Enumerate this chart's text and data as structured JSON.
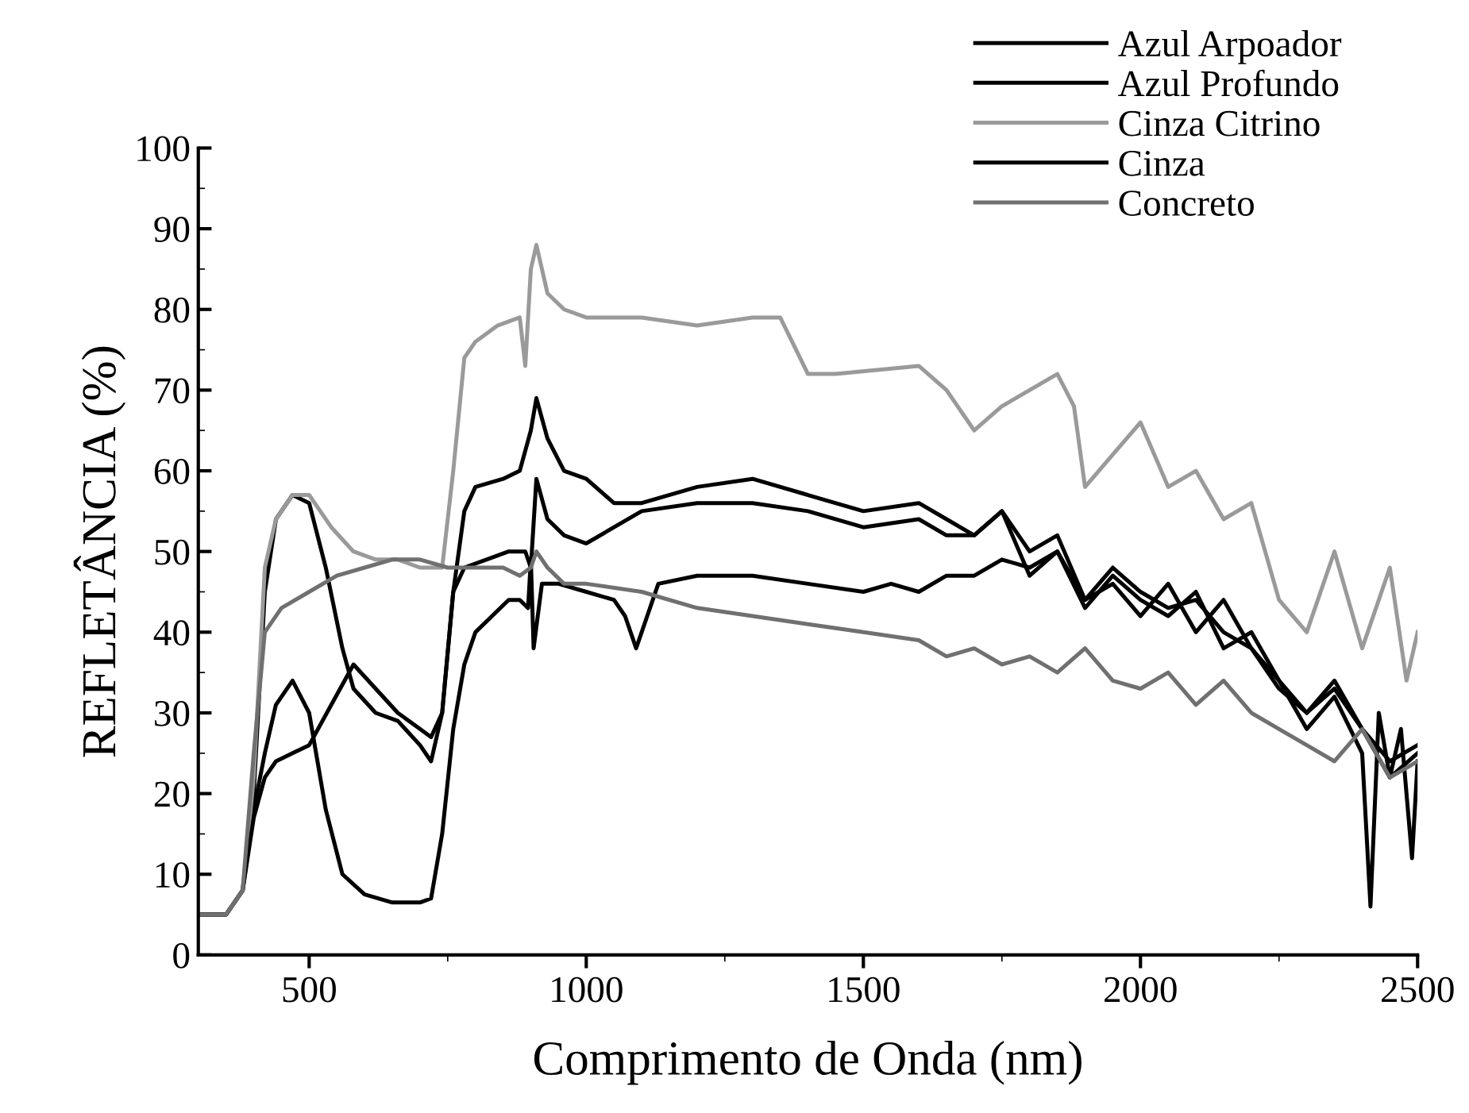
{
  "chart_data": {
    "type": "line",
    "xlabel": "Comprimento de Onda (nm)",
    "ylabel": "REFLETÂNCIA (%)",
    "xlim": [
      300,
      2500
    ],
    "xticks": [
      500,
      1000,
      1500,
      2000,
      2500
    ],
    "ylim": [
      0,
      100
    ],
    "yticks": [
      0,
      10,
      20,
      30,
      40,
      50,
      60,
      70,
      80,
      90,
      100
    ],
    "grid": false,
    "legend": "top right",
    "line_style": "solid",
    "marker": "none",
    "series": [
      {
        "name": "Azul Arpoador",
        "color": "#000000",
        "x": [
          300,
          350,
          380,
          400,
          420,
          440,
          470,
          500,
          530,
          560,
          580,
          620,
          660,
          700,
          720,
          740,
          760,
          780,
          820,
          860,
          890,
          900,
          910,
          930,
          960,
          1000,
          1100,
          1200,
          1300,
          1400,
          1500,
          1600,
          1650,
          1700,
          1750,
          1800,
          1850,
          1900,
          1950,
          2000,
          2050,
          2100,
          2150,
          2200,
          2250,
          2300,
          2350,
          2400,
          2450,
          2500
        ],
        "values": [
          5,
          5,
          8,
          20,
          45,
          54,
          57,
          56,
          48,
          38,
          33,
          30,
          29,
          26,
          24,
          30,
          45,
          48,
          49,
          50,
          50,
          48,
          59,
          54,
          52,
          51,
          55,
          56,
          56,
          55,
          53,
          54,
          52,
          52,
          55,
          50,
          52,
          44,
          48,
          45,
          43,
          44,
          40,
          38,
          33,
          30,
          34,
          28,
          24,
          26
        ]
      },
      {
        "name": "Azul Profundo",
        "color": "#000000",
        "x": [
          300,
          350,
          380,
          400,
          420,
          440,
          470,
          500,
          530,
          560,
          600,
          650,
          700,
          720,
          740,
          760,
          780,
          800,
          830,
          860,
          880,
          895,
          900,
          905,
          920,
          950,
          1000,
          1050,
          1070,
          1090,
          1110,
          1130,
          1200,
          1300,
          1400,
          1500,
          1550,
          1600,
          1650,
          1700,
          1750,
          1800,
          1850,
          1900,
          1950,
          2000,
          2050,
          2100,
          2150,
          2200,
          2250,
          2300,
          2350,
          2400,
          2415,
          2430,
          2450,
          2470,
          2490,
          2500
        ],
        "values": [
          5,
          5,
          8,
          18,
          25,
          31,
          34,
          30,
          18,
          10,
          7.5,
          6.5,
          6.5,
          7,
          15,
          28,
          36,
          40,
          42,
          44,
          44,
          43,
          49,
          38,
          46,
          46,
          45,
          44,
          42,
          38,
          42,
          46,
          47,
          47,
          46,
          45,
          46,
          45,
          47,
          47,
          49,
          48,
          50,
          44,
          46,
          42,
          46,
          40,
          44,
          38,
          34,
          28,
          32,
          25,
          6,
          30,
          22,
          28,
          12,
          24
        ]
      },
      {
        "name": "Cinza Citrino",
        "color": "#9a9a9a",
        "x": [
          300,
          350,
          380,
          400,
          420,
          440,
          470,
          500,
          540,
          580,
          620,
          660,
          700,
          740,
          760,
          780,
          800,
          840,
          880,
          890,
          900,
          910,
          930,
          960,
          1000,
          1100,
          1200,
          1300,
          1350,
          1400,
          1450,
          1600,
          1650,
          1700,
          1750,
          1800,
          1850,
          1880,
          1900,
          1950,
          2000,
          2050,
          2100,
          2150,
          2200,
          2250,
          2300,
          2350,
          2400,
          2450,
          2480,
          2500
        ],
        "values": [
          5,
          5,
          8,
          22,
          48,
          54,
          57,
          57,
          53,
          50,
          49,
          49,
          48,
          48,
          60,
          74,
          76,
          78,
          79,
          73,
          85,
          88,
          82,
          80,
          79,
          79,
          78,
          79,
          79,
          72,
          72,
          73,
          70,
          65,
          68,
          70,
          72,
          68,
          58,
          62,
          66,
          58,
          60,
          54,
          56,
          44,
          40,
          50,
          38,
          48,
          34,
          40
        ]
      },
      {
        "name": "Cinza",
        "color": "#000000",
        "x": [
          300,
          350,
          380,
          400,
          420,
          440,
          470,
          500,
          540,
          580,
          620,
          660,
          700,
          720,
          740,
          760,
          780,
          800,
          850,
          880,
          900,
          910,
          930,
          960,
          1000,
          1050,
          1100,
          1200,
          1300,
          1400,
          1500,
          1600,
          1650,
          1700,
          1750,
          1800,
          1850,
          1900,
          1950,
          2000,
          2050,
          2100,
          2150,
          2200,
          2250,
          2300,
          2350,
          2400,
          2450,
          2500
        ],
        "values": [
          5,
          5,
          8,
          17,
          22,
          24,
          25,
          26,
          31,
          36,
          33,
          30,
          28,
          27,
          30,
          45,
          55,
          58,
          59,
          60,
          65,
          69,
          64,
          60,
          59,
          56,
          56,
          58,
          59,
          57,
          55,
          56,
          54,
          52,
          55,
          47,
          50,
          43,
          47,
          44,
          42,
          45,
          38,
          40,
          34,
          30,
          33,
          28,
          22,
          25
        ]
      },
      {
        "name": "Concreto",
        "color": "#707070",
        "x": [
          300,
          350,
          380,
          400,
          420,
          450,
          500,
          550,
          600,
          650,
          700,
          750,
          800,
          850,
          880,
          900,
          910,
          930,
          960,
          1000,
          1100,
          1200,
          1300,
          1400,
          1500,
          1600,
          1650,
          1700,
          1750,
          1800,
          1850,
          1900,
          1950,
          2000,
          2050,
          2100,
          2150,
          2200,
          2250,
          2300,
          2350,
          2400,
          2450,
          2500
        ],
        "values": [
          5,
          5,
          8,
          25,
          40,
          43,
          45,
          47,
          48,
          49,
          49,
          48,
          48,
          48,
          47,
          48,
          50,
          48,
          46,
          46,
          45,
          43,
          42,
          41,
          40,
          39,
          37,
          38,
          36,
          37,
          35,
          38,
          34,
          33,
          35,
          31,
          34,
          30,
          28,
          26,
          24,
          28,
          22,
          24
        ]
      }
    ]
  }
}
